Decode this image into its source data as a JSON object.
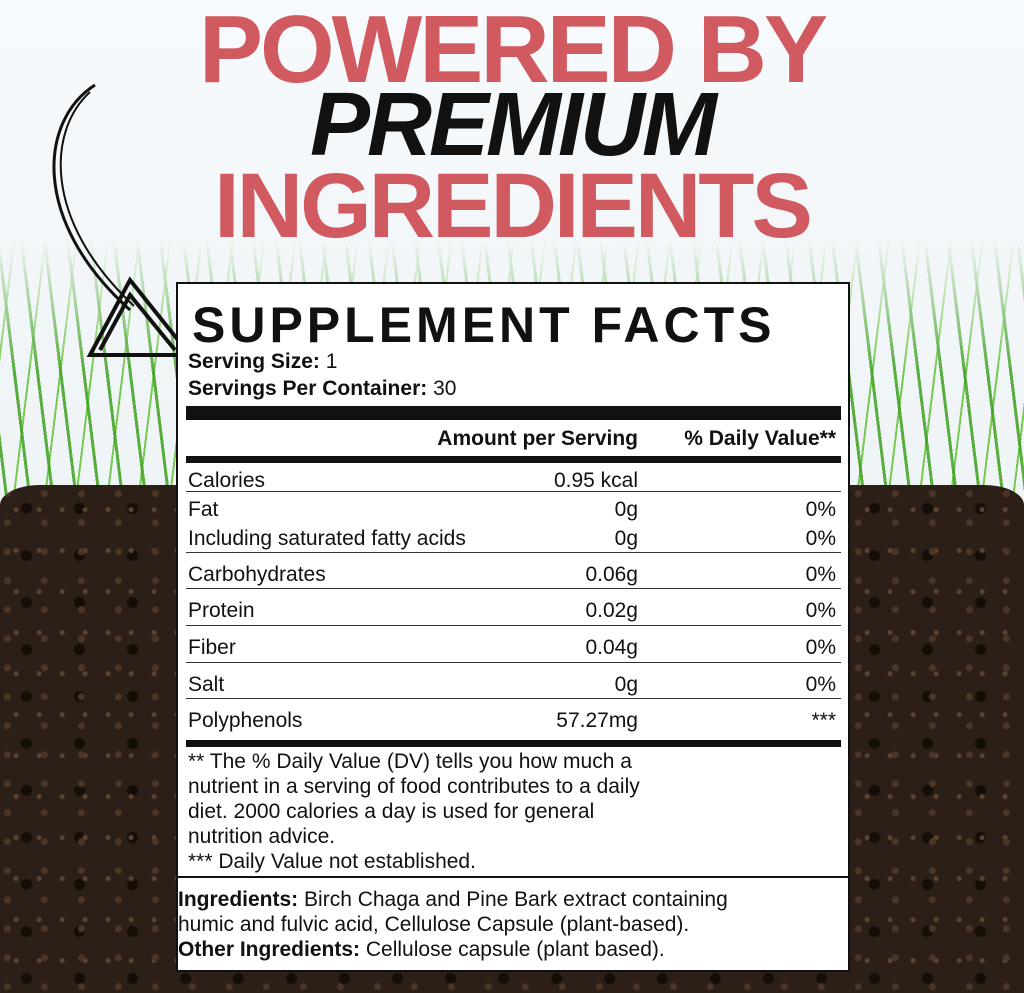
{
  "headline": {
    "line1": "POWERED BY",
    "line2": "PREMIUM",
    "line3": "INGREDIENTS"
  },
  "colors": {
    "accent": "#d05a5f",
    "text": "#111111",
    "soil": "#2b1f17",
    "grass": "#4fb02a"
  },
  "facts": {
    "title": "SUPPLEMENT FACTS",
    "serving_size_label": "Serving Size:",
    "serving_size": "1",
    "servings_label": "Servings Per Container:",
    "servings": "30",
    "col_amount": "Amount per Serving",
    "col_dv": "% Daily Value**",
    "rows": [
      {
        "label": "Calories",
        "amount": "0.95 kcal",
        "dv": ""
      },
      {
        "label": "Fat",
        "amount": "0g",
        "dv": "0%"
      },
      {
        "label": "Including saturated fatty acids",
        "amount": "0g",
        "dv": "0%"
      },
      {
        "label": "Carbohydrates",
        "amount": "0.06g",
        "dv": "0%"
      },
      {
        "label": "Protein",
        "amount": "0.02g",
        "dv": "0%"
      },
      {
        "label": "Fiber",
        "amount": "0.04g",
        "dv": "0%"
      },
      {
        "label": "Salt",
        "amount": "0g",
        "dv": "0%"
      },
      {
        "label": "Polyphenols",
        "amount": "57.27mg",
        "dv": "***"
      }
    ],
    "footnote": [
      "** The % Daily Value (DV) tells you how much a",
      "nutrient in a serving of food contributes to a daily",
      "diet. 2000 calories a day is used for general",
      "nutrition advice.",
      "*** Daily Value not established."
    ],
    "ingredients_label": "Ingredients:",
    "ingredients": [
      "Birch Chaga and Pine Bark extract containing",
      "humic and fulvic acid, Cellulose Capsule (plant-based)."
    ],
    "other_label": "Other Ingredients:",
    "other": "Cellulose capsule (plant based)."
  }
}
